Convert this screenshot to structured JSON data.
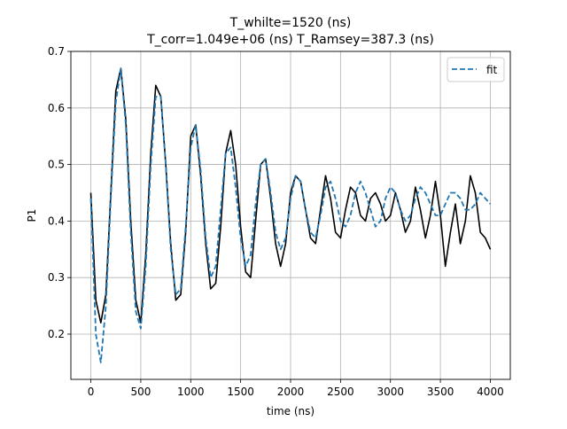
{
  "chart_data": {
    "type": "line",
    "title_line1": "T_whilte=1520 (ns)",
    "title_line2": "T_corr=1.049e+06 (ns) T_Ramsey=387.3 (ns)",
    "xlabel": "time (ns)",
    "ylabel": "P1",
    "xlim": [
      -200,
      4200
    ],
    "ylim": [
      0.12,
      0.7
    ],
    "xticks": [
      0,
      500,
      1000,
      1500,
      2000,
      2500,
      3000,
      3500,
      4000
    ],
    "xtick_labels": [
      "0",
      "500",
      "1000",
      "1500",
      "2000",
      "2500",
      "3000",
      "3500",
      "4000"
    ],
    "yticks": [
      0.2,
      0.3,
      0.4,
      0.5,
      0.6,
      0.7
    ],
    "ytick_labels": [
      "0.2",
      "0.3",
      "0.4",
      "0.5",
      "0.6",
      "0.7"
    ],
    "grid": true,
    "legend_position": "top-right",
    "series": [
      {
        "name": "",
        "style": "solid",
        "color": "#000000",
        "x": [
          0,
          50,
          100,
          150,
          200,
          250,
          300,
          350,
          400,
          450,
          500,
          550,
          600,
          650,
          700,
          750,
          800,
          850,
          900,
          950,
          1000,
          1050,
          1100,
          1150,
          1200,
          1250,
          1300,
          1350,
          1400,
          1450,
          1500,
          1550,
          1600,
          1650,
          1700,
          1750,
          1800,
          1850,
          1900,
          1950,
          2000,
          2050,
          2100,
          2150,
          2200,
          2250,
          2300,
          2350,
          2400,
          2450,
          2500,
          2550,
          2600,
          2650,
          2700,
          2750,
          2800,
          2850,
          2900,
          2950,
          3000,
          3050,
          3100,
          3150,
          3200,
          3250,
          3300,
          3350,
          3400,
          3450,
          3500,
          3550,
          3600,
          3650,
          3700,
          3750,
          3800,
          3850,
          3900,
          3950,
          4000
        ],
        "values": [
          0.45,
          0.26,
          0.22,
          0.27,
          0.45,
          0.63,
          0.67,
          0.58,
          0.4,
          0.26,
          0.22,
          0.34,
          0.52,
          0.64,
          0.62,
          0.5,
          0.36,
          0.26,
          0.27,
          0.38,
          0.55,
          0.57,
          0.48,
          0.36,
          0.28,
          0.29,
          0.39,
          0.52,
          0.56,
          0.5,
          0.39,
          0.31,
          0.3,
          0.4,
          0.5,
          0.51,
          0.44,
          0.36,
          0.32,
          0.36,
          0.45,
          0.48,
          0.47,
          0.42,
          0.37,
          0.36,
          0.42,
          0.48,
          0.44,
          0.38,
          0.37,
          0.42,
          0.46,
          0.45,
          0.41,
          0.4,
          0.44,
          0.45,
          0.43,
          0.4,
          0.41,
          0.45,
          0.42,
          0.38,
          0.4,
          0.46,
          0.42,
          0.37,
          0.41,
          0.47,
          0.41,
          0.32,
          0.38,
          0.43,
          0.36,
          0.4,
          0.48,
          0.45,
          0.38,
          0.37,
          0.35
        ]
      },
      {
        "name": "fit",
        "style": "dashed",
        "color": "#1f77b4",
        "x": [
          0,
          50,
          100,
          150,
          200,
          250,
          300,
          350,
          400,
          450,
          500,
          550,
          600,
          650,
          700,
          750,
          800,
          850,
          900,
          950,
          1000,
          1050,
          1100,
          1150,
          1200,
          1250,
          1300,
          1350,
          1400,
          1450,
          1500,
          1550,
          1600,
          1650,
          1700,
          1750,
          1800,
          1850,
          1900,
          1950,
          2000,
          2050,
          2100,
          2150,
          2200,
          2250,
          2300,
          2350,
          2400,
          2450,
          2500,
          2550,
          2600,
          2650,
          2700,
          2750,
          2800,
          2850,
          2900,
          2950,
          3000,
          3050,
          3100,
          3150,
          3200,
          3250,
          3300,
          3350,
          3400,
          3450,
          3500,
          3550,
          3600,
          3650,
          3700,
          3750,
          3800,
          3850,
          3900,
          3950,
          4000
        ],
        "values": [
          0.44,
          0.2,
          0.15,
          0.25,
          0.44,
          0.61,
          0.67,
          0.57,
          0.38,
          0.24,
          0.21,
          0.32,
          0.5,
          0.62,
          0.62,
          0.5,
          0.35,
          0.27,
          0.28,
          0.39,
          0.53,
          0.57,
          0.49,
          0.37,
          0.3,
          0.32,
          0.42,
          0.52,
          0.53,
          0.46,
          0.37,
          0.32,
          0.34,
          0.43,
          0.5,
          0.51,
          0.45,
          0.38,
          0.35,
          0.37,
          0.44,
          0.48,
          0.47,
          0.42,
          0.38,
          0.37,
          0.41,
          0.46,
          0.47,
          0.44,
          0.4,
          0.39,
          0.41,
          0.45,
          0.47,
          0.45,
          0.42,
          0.39,
          0.4,
          0.44,
          0.46,
          0.45,
          0.42,
          0.4,
          0.41,
          0.44,
          0.46,
          0.45,
          0.43,
          0.41,
          0.41,
          0.43,
          0.45,
          0.45,
          0.44,
          0.42,
          0.42,
          0.43,
          0.45,
          0.44,
          0.43
        ]
      }
    ]
  }
}
